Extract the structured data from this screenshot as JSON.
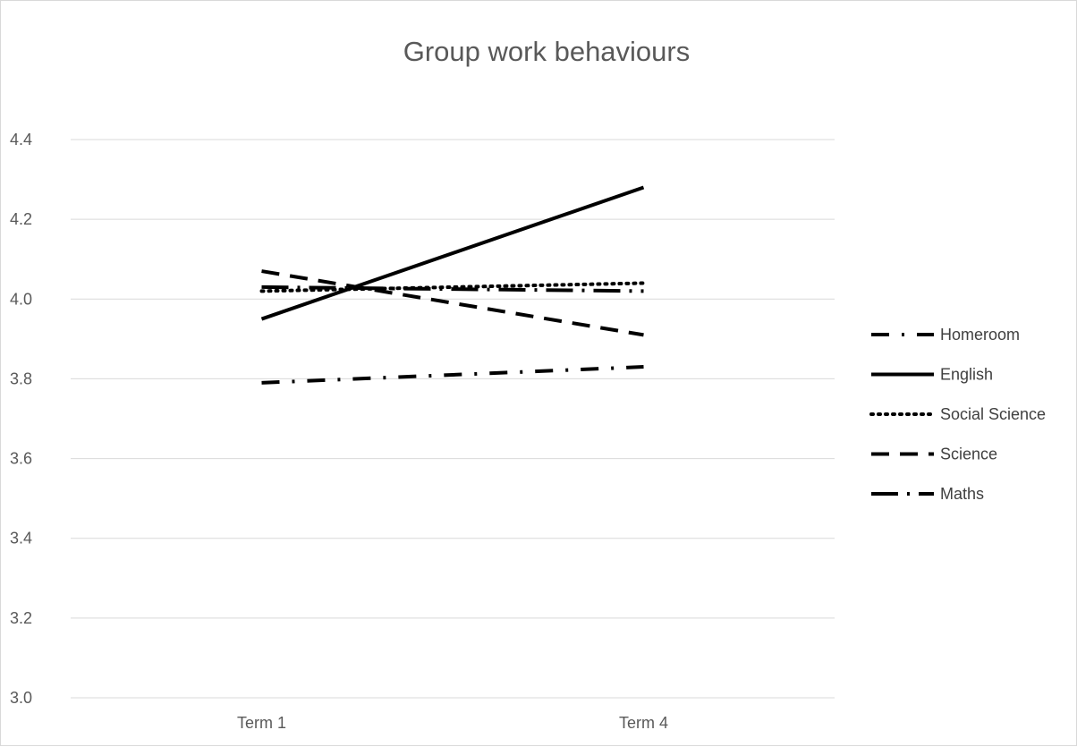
{
  "chart_data": {
    "type": "line",
    "title": "Group work behaviours",
    "xlabel": "",
    "ylabel": "",
    "categories": [
      "Term 1",
      "Term 4"
    ],
    "ylim": [
      3.0,
      4.4
    ],
    "yticks": [
      "3.0",
      "3.2",
      "3.4",
      "3.6",
      "3.8",
      "4.0",
      "4.2",
      "4.4"
    ],
    "grid": true,
    "legend_position": "right",
    "series": [
      {
        "name": "Homeroom",
        "values": [
          3.79,
          3.83
        ],
        "line_style": "dash-dot",
        "color": "#000000"
      },
      {
        "name": "English",
        "values": [
          3.95,
          4.28
        ],
        "line_style": "solid",
        "color": "#000000"
      },
      {
        "name": "Social Science",
        "values": [
          4.02,
          4.04
        ],
        "line_style": "dotted",
        "color": "#000000"
      },
      {
        "name": "Science",
        "values": [
          4.07,
          3.91
        ],
        "line_style": "dashed",
        "color": "#000000"
      },
      {
        "name": "Maths",
        "values": [
          4.03,
          4.02
        ],
        "line_style": "long-dash-dot",
        "color": "#000000"
      }
    ]
  }
}
